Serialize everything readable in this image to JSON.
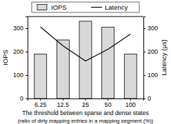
{
  "chart_data": {
    "type": "bar",
    "categories": [
      "6.25",
      "12.5",
      "25",
      "50",
      "100"
    ],
    "series": [
      {
        "name": "IOPS",
        "type": "bar",
        "color": "#d9d9d9",
        "values": [
          190,
          250,
          330,
          305,
          190
        ]
      },
      {
        "name": "Latency",
        "type": "line",
        "color": "#000000",
        "axis": "y2",
        "values": [
          305,
          225,
          160,
          210,
          275
        ]
      }
    ],
    "xlabel": [
      "The threshold between sparse and dense states",
      "(ratio of dirty mapping entries in a mapping segment (%))"
    ],
    "ylabel": "IOPS",
    "y2label": "Latency (μs)",
    "ylim": [
      0,
      350
    ],
    "yticks": [
      0,
      100,
      200,
      300
    ],
    "y2lim": [
      0,
      350
    ],
    "y2ticks": [
      0,
      100,
      200,
      300
    ],
    "legend": "top"
  }
}
